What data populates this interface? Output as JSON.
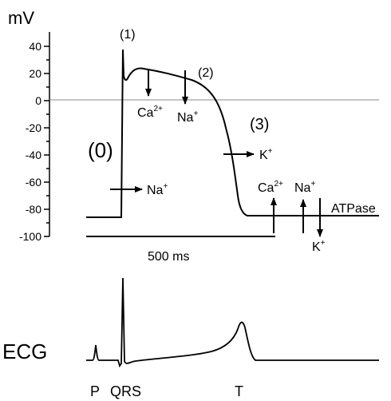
{
  "axis": {
    "unit": "mV",
    "ticks": [
      "40",
      "20",
      "0",
      "-20",
      "-40",
      "-60",
      "-80",
      "-100"
    ]
  },
  "phases": {
    "p0": "(0)",
    "p1": "(1)",
    "p2": "(2)",
    "p3": "(3)"
  },
  "ions": {
    "na_in": {
      "base": "Na",
      "sup": "+"
    },
    "ca_plateau": {
      "base": "Ca",
      "sup": "2+"
    },
    "na_plateau": {
      "base": "Na",
      "sup": "+"
    },
    "k_out": {
      "base": "K",
      "sup": "+"
    },
    "ca_rest": {
      "base": "Ca",
      "sup": "2+"
    },
    "na_rest": {
      "base": "Na",
      "sup": "+"
    },
    "k_rest": {
      "base": "K",
      "sup": "+"
    },
    "atpase": "ATPase"
  },
  "scale_bar": "500 ms",
  "ecg": {
    "title": "ECG",
    "p": "P",
    "qrs": "QRS",
    "t": "T"
  }
}
